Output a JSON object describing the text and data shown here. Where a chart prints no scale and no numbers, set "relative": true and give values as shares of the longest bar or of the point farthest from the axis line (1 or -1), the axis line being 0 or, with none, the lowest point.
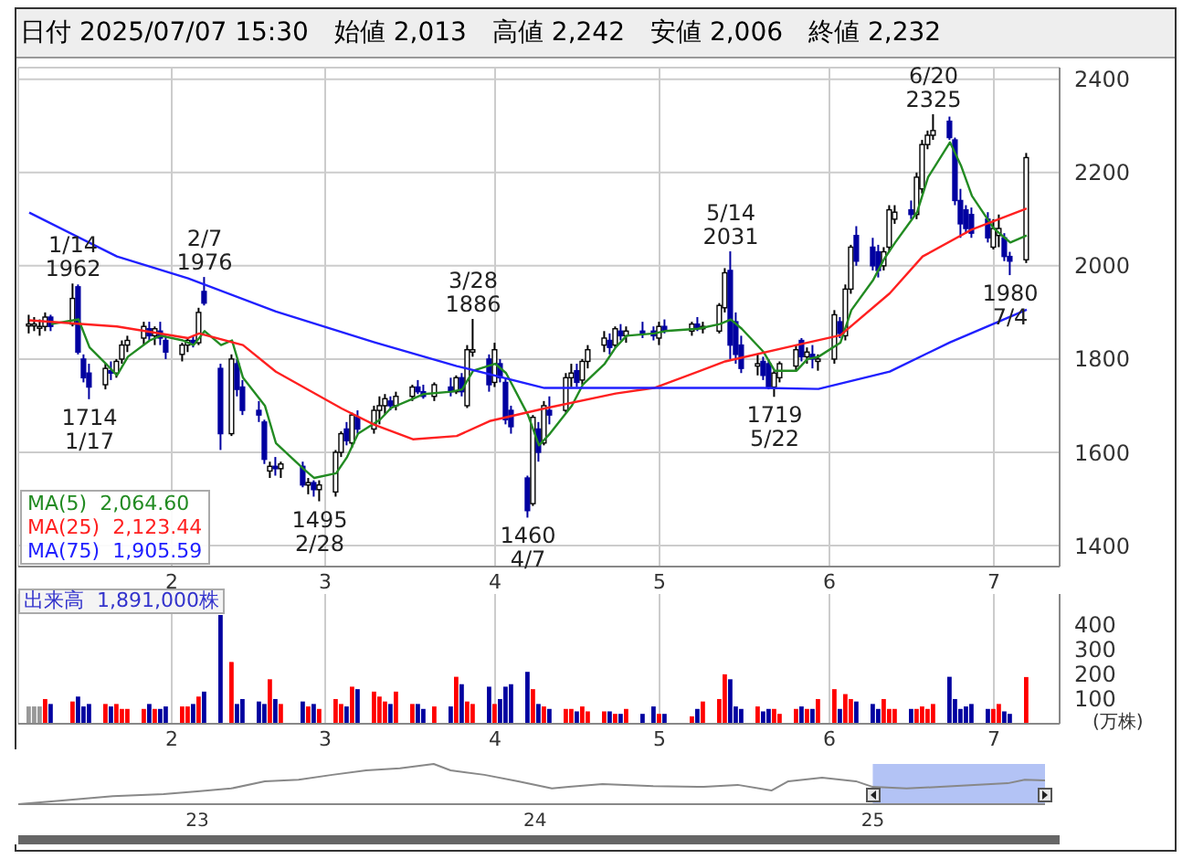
{
  "chart_data": [
    {
      "type": "candlestick",
      "title": "日付 2025/07/07 15:30",
      "colors": [
        "#ffffff",
        "#ffffff",
        "#ffffff",
        "#ffffff",
        "#0000a0",
        "#ffffff",
        "#0000a0",
        "#0000a0",
        "#0000a0",
        "#ffffff",
        "#0000a0",
        "#ffffff",
        "#ffffff",
        "#ffffff",
        "#ffffff",
        "#0000a0",
        "#ffffff",
        "#0000a0",
        "#0000a0",
        "#ffffff",
        "#ffffff",
        "#0000a0",
        "#ffffff",
        "#0000a0",
        "#0000a0",
        "#ffffff",
        "#0000a0",
        "#0000a0",
        "#0000a0",
        "#0000a0",
        "#ffffff",
        "#0000a0",
        "#ffffff",
        "#0000a0",
        "#ffffff",
        "#0000a0",
        "#ffffff",
        "#ffffff",
        "#ffffff",
        "#0000a0",
        "#ffffff",
        "#0000a0",
        "#ffffff",
        "#ffffff",
        "#ffffff",
        "#0000a0",
        "#ffffff",
        "#ffffff",
        "#0000a0",
        "#0000a0",
        "#ffffff",
        "#0000a0",
        "#ffffff",
        "#0000a0",
        "#ffffff",
        "#ffffff",
        "#0000a0",
        "#ffffff",
        "#0000a0",
        "#0000a0",
        "#0000a0",
        "#0000a0",
        "#ffffff",
        "#0000a0",
        "#ffffff",
        "#0000a0",
        "#ffffff",
        "#ffffff",
        "#0000a0",
        "#ffffff",
        "#ffffff",
        "#ffffff",
        "#0000a0",
        "#ffffff",
        "#0000a0",
        "#ffffff",
        "#0000a0",
        "#0000a0",
        "#ffffff",
        "#0000a0",
        "#ffffff",
        "#0000a0",
        "#ffffff",
        "#ffffff",
        "#ffffff",
        "#0000a0",
        "#0000a0",
        "#0000a0",
        "#ffffff",
        "#0000a0",
        "#0000a0",
        "#ffffff",
        "#ffffff",
        "#ffffff",
        "#0000a0",
        "#ffffff",
        "#0000a0",
        "#ffffff",
        "#ffffff",
        "#0000a0",
        "#ffffff",
        "#ffffff",
        "#0000a0",
        "#0000a0",
        "#0000a0",
        "#ffffff",
        "#ffffff",
        "#ffffff",
        "#0000a0",
        "#ffffff",
        "#ffffff",
        "#ffffff",
        "#ffffff",
        "#0000a0",
        "#0000a0",
        "#0000a0",
        "#0000a0",
        "#0000a0",
        "#0000a0",
        "#ffffff",
        "#ffffff",
        "#0000a0",
        "#0000a0",
        "#ffffff"
      ],
      "annotations": [
        "始値 2,013",
        "高値 2,242",
        "安値 2,006",
        "終値 2,232",
        {
          "text": "1/14\n1962",
          "x": "2025-01-14",
          "y": 1962
        },
        {
          "text": "1714\n1/17",
          "x": "2025-01-17",
          "y": 1714
        },
        {
          "text": "2/7\n1976",
          "x": "2025-02-07",
          "y": 1976
        },
        {
          "text": "1495\n2/28",
          "x": "2025-02-28",
          "y": 1495
        },
        {
          "text": "3/28\n1886",
          "x": "2025-03-28",
          "y": 1886
        },
        {
          "text": "1460\n4/7",
          "x": "2025-04-07",
          "y": 1460
        },
        {
          "text": "5/14\n2031",
          "x": "2025-05-14",
          "y": 2031
        },
        {
          "text": "1719\n5/22",
          "x": "2025-05-22",
          "y": 1719
        },
        {
          "text": "6/20\n2325",
          "x": "2025-06-20",
          "y": 2325
        },
        {
          "text": "1980\n7/4",
          "x": "2025-07-04",
          "y": 1980
        }
      ],
      "x": [
        "2025-01-06",
        "2025-01-07",
        "2025-01-08",
        "2025-01-09",
        "2025-01-10",
        "2025-01-14",
        "2025-01-15",
        "2025-01-16",
        "2025-01-17",
        "2025-01-20",
        "2025-01-21",
        "2025-01-22",
        "2025-01-23",
        "2025-01-24",
        "2025-01-27",
        "2025-01-28",
        "2025-01-29",
        "2025-01-30",
        "2025-01-31",
        "2025-02-03",
        "2025-02-04",
        "2025-02-05",
        "2025-02-06",
        "2025-02-07",
        "2025-02-10",
        "2025-02-12",
        "2025-02-13",
        "2025-02-14",
        "2025-02-17",
        "2025-02-18",
        "2025-02-19",
        "2025-02-20",
        "2025-02-21",
        "2025-02-25",
        "2025-02-26",
        "2025-02-27",
        "2025-02-28",
        "2025-03-03",
        "2025-03-04",
        "2025-03-05",
        "2025-03-06",
        "2025-03-07",
        "2025-03-10",
        "2025-03-11",
        "2025-03-12",
        "2025-03-13",
        "2025-03-14",
        "2025-03-17",
        "2025-03-18",
        "2025-03-19",
        "2025-03-21",
        "2025-03-24",
        "2025-03-25",
        "2025-03-26",
        "2025-03-27",
        "2025-03-28",
        "2025-03-31",
        "2025-04-01",
        "2025-04-02",
        "2025-04-03",
        "2025-04-04",
        "2025-04-07",
        "2025-04-08",
        "2025-04-09",
        "2025-04-10",
        "2025-04-11",
        "2025-04-14",
        "2025-04-15",
        "2025-04-16",
        "2025-04-17",
        "2025-04-18",
        "2025-04-21",
        "2025-04-22",
        "2025-04-23",
        "2025-04-24",
        "2025-04-25",
        "2025-04-28",
        "2025-04-30",
        "2025-05-01",
        "2025-05-02",
        "2025-05-07",
        "2025-05-08",
        "2025-05-09",
        "2025-05-12",
        "2025-05-13",
        "2025-05-14",
        "2025-05-15",
        "2025-05-16",
        "2025-05-19",
        "2025-05-20",
        "2025-05-21",
        "2025-05-22",
        "2025-05-23",
        "2025-05-26",
        "2025-05-27",
        "2025-05-28",
        "2025-05-29",
        "2025-05-30",
        "2025-06-02",
        "2025-06-03",
        "2025-06-04",
        "2025-06-05",
        "2025-06-06",
        "2025-06-09",
        "2025-06-10",
        "2025-06-11",
        "2025-06-12",
        "2025-06-13",
        "2025-06-16",
        "2025-06-17",
        "2025-06-18",
        "2025-06-19",
        "2025-06-20",
        "2025-06-23",
        "2025-06-24",
        "2025-06-25",
        "2025-06-26",
        "2025-06-27",
        "2025-06-30",
        "2025-07-01",
        "2025-07-02",
        "2025-07-03",
        "2025-07-04",
        "2025-07-07"
      ],
      "ohlc": [
        [
          1875,
          1895,
          1855,
          1875
        ],
        [
          1875,
          1890,
          1860,
          1875
        ],
        [
          1870,
          1885,
          1850,
          1870
        ],
        [
          1870,
          1900,
          1860,
          1890
        ],
        [
          1890,
          1895,
          1860,
          1870
        ],
        [
          1875,
          1962,
          1870,
          1930
        ],
        [
          1955,
          1960,
          1810,
          1815
        ],
        [
          1800,
          1810,
          1750,
          1760
        ],
        [
          1770,
          1790,
          1714,
          1740
        ],
        [
          1745,
          1790,
          1735,
          1780
        ],
        [
          1775,
          1795,
          1755,
          1770
        ],
        [
          1770,
          1800,
          1760,
          1795
        ],
        [
          1800,
          1840,
          1790,
          1830
        ],
        [
          1830,
          1850,
          1815,
          1840
        ],
        [
          1845,
          1880,
          1830,
          1870
        ],
        [
          1865,
          1880,
          1840,
          1850
        ],
        [
          1850,
          1870,
          1830,
          1865
        ],
        [
          1860,
          1880,
          1830,
          1845
        ],
        [
          1840,
          1850,
          1800,
          1815
        ],
        [
          1810,
          1835,
          1795,
          1830
        ],
        [
          1830,
          1845,
          1815,
          1840
        ],
        [
          1840,
          1850,
          1825,
          1835
        ],
        [
          1835,
          1910,
          1830,
          1900
        ],
        [
          1945,
          1976,
          1915,
          1920
        ],
        [
          1780,
          1790,
          1605,
          1640
        ],
        [
          1640,
          1810,
          1635,
          1800
        ],
        [
          1790,
          1800,
          1720,
          1735
        ],
        [
          1740,
          1755,
          1680,
          1690
        ],
        [
          1690,
          1710,
          1665,
          1680
        ],
        [
          1665,
          1670,
          1575,
          1585
        ],
        [
          1560,
          1580,
          1545,
          1570
        ],
        [
          1570,
          1590,
          1550,
          1565
        ],
        [
          1565,
          1580,
          1545,
          1575
        ],
        [
          1570,
          1580,
          1525,
          1530
        ],
        [
          1530,
          1545,
          1510,
          1535
        ],
        [
          1535,
          1540,
          1505,
          1520
        ],
        [
          1520,
          1540,
          1495,
          1530
        ],
        [
          1515,
          1605,
          1505,
          1600
        ],
        [
          1600,
          1645,
          1590,
          1640
        ],
        [
          1650,
          1665,
          1615,
          1625
        ],
        [
          1620,
          1685,
          1610,
          1680
        ],
        [
          1675,
          1690,
          1640,
          1650
        ],
        [
          1650,
          1700,
          1640,
          1690
        ],
        [
          1690,
          1720,
          1660,
          1700
        ],
        [
          1700,
          1725,
          1680,
          1715
        ],
        [
          1710,
          1720,
          1690,
          1700
        ],
        [
          1700,
          1730,
          1690,
          1720
        ],
        [
          1720,
          1745,
          1710,
          1740
        ],
        [
          1740,
          1755,
          1725,
          1730
        ],
        [
          1730,
          1745,
          1715,
          1720
        ],
        [
          1720,
          1750,
          1710,
          1745
        ],
        [
          1740,
          1760,
          1720,
          1730
        ],
        [
          1730,
          1765,
          1725,
          1760
        ],
        [
          1760,
          1770,
          1720,
          1730
        ],
        [
          1700,
          1830,
          1695,
          1820
        ],
        [
          1815,
          1886,
          1805,
          1820
        ],
        [
          1800,
          1810,
          1730,
          1745
        ],
        [
          1750,
          1835,
          1740,
          1820
        ],
        [
          1790,
          1800,
          1750,
          1760
        ],
        [
          1750,
          1760,
          1660,
          1670
        ],
        [
          1690,
          1700,
          1640,
          1655
        ],
        [
          1545,
          1550,
          1460,
          1475
        ],
        [
          1490,
          1680,
          1485,
          1675
        ],
        [
          1650,
          1665,
          1580,
          1600
        ],
        [
          1620,
          1710,
          1615,
          1700
        ],
        [
          1690,
          1720,
          1660,
          1680
        ],
        [
          1690,
          1770,
          1685,
          1760
        ],
        [
          1760,
          1790,
          1740,
          1770
        ],
        [
          1775,
          1790,
          1740,
          1750
        ],
        [
          1755,
          1800,
          1745,
          1795
        ],
        [
          1795,
          1830,
          1780,
          1820
        ],
        [
          1830,
          1860,
          1815,
          1845
        ],
        [
          1840,
          1855,
          1810,
          1825
        ],
        [
          1830,
          1870,
          1825,
          1865
        ],
        [
          1860,
          1875,
          1840,
          1850
        ],
        [
          1850,
          1870,
          1835,
          1860
        ],
        [
          1860,
          1880,
          1845,
          1855
        ],
        [
          1860,
          1870,
          1840,
          1850
        ],
        [
          1845,
          1880,
          1830,
          1870
        ],
        [
          1870,
          1885,
          1855,
          1860
        ],
        [
          1860,
          1880,
          1850,
          1875
        ],
        [
          1875,
          1890,
          1860,
          1865
        ],
        [
          1865,
          1880,
          1855,
          1870
        ],
        [
          1860,
          1920,
          1855,
          1915
        ],
        [
          1910,
          1995,
          1900,
          1985
        ],
        [
          1990,
          2031,
          1800,
          1830
        ],
        [
          1880,
          1900,
          1790,
          1810
        ],
        [
          1830,
          1850,
          1770,
          1780
        ],
        [
          1785,
          1810,
          1765,
          1790
        ],
        [
          1795,
          1805,
          1755,
          1765
        ],
        [
          1790,
          1800,
          1735,
          1740
        ],
        [
          1740,
          1775,
          1719,
          1770
        ],
        [
          1760,
          1795,
          1750,
          1790
        ],
        [
          1785,
          1830,
          1775,
          1820
        ],
        [
          1840,
          1845,
          1795,
          1805
        ],
        [
          1805,
          1825,
          1790,
          1815
        ],
        [
          1810,
          1830,
          1780,
          1800
        ],
        [
          1795,
          1810,
          1775,
          1800
        ],
        [
          1800,
          1905,
          1790,
          1895
        ],
        [
          1880,
          1890,
          1845,
          1855
        ],
        [
          1850,
          1960,
          1840,
          1950
        ],
        [
          1950,
          2045,
          1940,
          2040
        ],
        [
          2065,
          2085,
          2000,
          2010
        ],
        [
          2040,
          2060,
          1990,
          2000
        ],
        [
          2030,
          2045,
          1975,
          1990
        ],
        [
          2000,
          2040,
          1990,
          2030
        ],
        [
          2040,
          2130,
          2030,
          2120
        ],
        [
          2100,
          2130,
          2090,
          2115
        ],
        [
          2120,
          2140,
          2100,
          2110
        ],
        [
          2110,
          2200,
          2100,
          2190
        ],
        [
          2165,
          2270,
          2155,
          2260
        ],
        [
          2260,
          2290,
          2250,
          2280
        ],
        [
          2280,
          2325,
          2270,
          2290
        ],
        [
          2310,
          2320,
          2270,
          2275
        ],
        [
          2270,
          2275,
          2130,
          2140
        ],
        [
          2140,
          2165,
          2060,
          2090
        ],
        [
          2120,
          2130,
          2070,
          2080
        ],
        [
          2110,
          2125,
          2060,
          2070
        ],
        [
          2100,
          2115,
          2050,
          2060
        ],
        [
          2040,
          2100,
          2035,
          2080
        ],
        [
          2065,
          2110,
          2040,
          2080
        ],
        [
          2060,
          2070,
          2010,
          2020
        ],
        [
          2020,
          2030,
          1980,
          2010
        ],
        [
          2013,
          2242,
          2006,
          2232
        ]
      ],
      "series": [
        {
          "type": "line",
          "name": "MA(5)  2,064.60",
          "color": "#228b22",
          "x": [
            "2025-01-10",
            "2025-01-15",
            "2025-01-17",
            "2025-01-20",
            "2025-01-22",
            "2025-01-24",
            "2025-01-28",
            "2025-01-30",
            "2025-02-03",
            "2025-02-05",
            "2025-02-07",
            "2025-02-10",
            "2025-02-12",
            "2025-02-14",
            "2025-02-18",
            "2025-02-20",
            "2025-02-25",
            "2025-02-27",
            "2025-03-03",
            "2025-03-05",
            "2025-03-07",
            "2025-03-11",
            "2025-03-13",
            "2025-03-17",
            "2025-03-19",
            "2025-03-24",
            "2025-03-26",
            "2025-03-28",
            "2025-04-01",
            "2025-04-03",
            "2025-04-07",
            "2025-04-09",
            "2025-04-11",
            "2025-04-15",
            "2025-04-17",
            "2025-04-21",
            "2025-04-23",
            "2025-04-25",
            "2025-04-30",
            "2025-05-02",
            "2025-05-08",
            "2025-05-12",
            "2025-05-14",
            "2025-05-16",
            "2025-05-20",
            "2025-05-22",
            "2025-05-26",
            "2025-05-28",
            "2025-05-30",
            "2025-06-03",
            "2025-06-05",
            "2025-06-09",
            "2025-06-11",
            "2025-06-13",
            "2025-06-17",
            "2025-06-19",
            "2025-06-23",
            "2025-06-25",
            "2025-06-27",
            "2025-07-01",
            "2025-07-03",
            "2025-07-04",
            "2025-07-07"
          ],
          "values": [
            1875,
            1885,
            1825,
            1790,
            1765,
            1805,
            1840,
            1850,
            1840,
            1830,
            1860,
            1830,
            1840,
            1760,
            1700,
            1620,
            1565,
            1545,
            1555,
            1590,
            1640,
            1670,
            1695,
            1715,
            1725,
            1730,
            1735,
            1775,
            1790,
            1770,
            1680,
            1615,
            1640,
            1700,
            1745,
            1790,
            1825,
            1850,
            1855,
            1860,
            1865,
            1875,
            1885,
            1865,
            1815,
            1775,
            1775,
            1800,
            1805,
            1835,
            1905,
            1970,
            2015,
            2050,
            2115,
            2190,
            2265,
            2215,
            2150,
            2080,
            2060,
            2050,
            2065
          ]
        },
        {
          "type": "line",
          "name": "MA(25)  2,123.44",
          "color": "#ff2020",
          "x": [
            "2025-01-06",
            "2025-01-22",
            "2025-02-04",
            "2025-02-06",
            "2025-02-14",
            "2025-02-20",
            "2025-03-04",
            "2025-03-10",
            "2025-03-17",
            "2025-03-25",
            "2025-03-31",
            "2025-04-10",
            "2025-04-23",
            "2025-04-30",
            "2025-05-13",
            "2025-05-26",
            "2025-06-03",
            "2025-06-12",
            "2025-06-18",
            "2025-06-27",
            "2025-07-07"
          ],
          "values": [
            1883,
            1870,
            1845,
            1855,
            1830,
            1773,
            1694,
            1659,
            1628,
            1635,
            1667,
            1694,
            1726,
            1738,
            1795,
            1830,
            1851,
            1941,
            2020,
            2078,
            2123
          ]
        },
        {
          "type": "line",
          "name": "MA(75)  1,905.59",
          "color": "#2020ff",
          "x": [
            "2025-01-06",
            "2025-01-22",
            "2025-02-04",
            "2025-02-20",
            "2025-03-10",
            "2025-03-25",
            "2025-04-10",
            "2025-04-30",
            "2025-05-20",
            "2025-05-30",
            "2025-06-12",
            "2025-06-23",
            "2025-07-07"
          ],
          "values": [
            2114,
            2020,
            1973,
            1902,
            1836,
            1785,
            1738,
            1738,
            1738,
            1736,
            1773,
            1836,
            1906
          ]
        }
      ],
      "ylim": [
        1355,
        2425
      ],
      "yticks": [
        1400,
        1600,
        1800,
        2000,
        2200,
        2400
      ],
      "xlim": [
        "2025-01-04",
        "2025-07-13"
      ],
      "xticks": [
        {
          "value": "2025-02-01",
          "label": "2"
        },
        {
          "value": "2025-03-01",
          "label": "3"
        },
        {
          "value": "2025-04-01",
          "label": "4"
        },
        {
          "value": "2025-05-01",
          "label": "5"
        },
        {
          "value": "2025-06-01",
          "label": "6"
        },
        {
          "value": "2025-07-01",
          "label": "7"
        }
      ],
      "grid": true,
      "legend": "bottom left",
      "marker": "none"
    },
    {
      "type": "bar",
      "title": "出来高  1,891,000株",
      "ylabel": "(万株)",
      "x": [
        "2025-01-06",
        "2025-01-07",
        "2025-01-08",
        "2025-01-09",
        "2025-01-10",
        "2025-01-14",
        "2025-01-15",
        "2025-01-16",
        "2025-01-17",
        "2025-01-20",
        "2025-01-21",
        "2025-01-22",
        "2025-01-23",
        "2025-01-24",
        "2025-01-27",
        "2025-01-28",
        "2025-01-29",
        "2025-01-30",
        "2025-01-31",
        "2025-02-03",
        "2025-02-04",
        "2025-02-05",
        "2025-02-06",
        "2025-02-07",
        "2025-02-10",
        "2025-02-12",
        "2025-02-13",
        "2025-02-14",
        "2025-02-17",
        "2025-02-18",
        "2025-02-19",
        "2025-02-20",
        "2025-02-21",
        "2025-02-25",
        "2025-02-26",
        "2025-02-27",
        "2025-02-28",
        "2025-03-03",
        "2025-03-04",
        "2025-03-05",
        "2025-03-06",
        "2025-03-07",
        "2025-03-10",
        "2025-03-11",
        "2025-03-12",
        "2025-03-13",
        "2025-03-14",
        "2025-03-17",
        "2025-03-18",
        "2025-03-19",
        "2025-03-21",
        "2025-03-24",
        "2025-03-25",
        "2025-03-26",
        "2025-03-27",
        "2025-03-28",
        "2025-03-31",
        "2025-04-01",
        "2025-04-02",
        "2025-04-03",
        "2025-04-04",
        "2025-04-07",
        "2025-04-08",
        "2025-04-09",
        "2025-04-10",
        "2025-04-11",
        "2025-04-14",
        "2025-04-15",
        "2025-04-16",
        "2025-04-17",
        "2025-04-18",
        "2025-04-21",
        "2025-04-22",
        "2025-04-23",
        "2025-04-24",
        "2025-04-25",
        "2025-04-28",
        "2025-04-30",
        "2025-05-01",
        "2025-05-02",
        "2025-05-07",
        "2025-05-08",
        "2025-05-09",
        "2025-05-12",
        "2025-05-13",
        "2025-05-14",
        "2025-05-15",
        "2025-05-16",
        "2025-05-19",
        "2025-05-20",
        "2025-05-21",
        "2025-05-22",
        "2025-05-23",
        "2025-05-26",
        "2025-05-27",
        "2025-05-28",
        "2025-05-29",
        "2025-05-30",
        "2025-06-02",
        "2025-06-03",
        "2025-06-04",
        "2025-06-05",
        "2025-06-06",
        "2025-06-09",
        "2025-06-10",
        "2025-06-11",
        "2025-06-12",
        "2025-06-13",
        "2025-06-16",
        "2025-06-17",
        "2025-06-18",
        "2025-06-19",
        "2025-06-20",
        "2025-06-23",
        "2025-06-24",
        "2025-06-25",
        "2025-06-26",
        "2025-06-27",
        "2025-06-30",
        "2025-07-01",
        "2025-07-02",
        "2025-07-03",
        "2025-07-04",
        "2025-07-07"
      ],
      "values": [
        70,
        70,
        70,
        100,
        80,
        90,
        110,
        70,
        80,
        80,
        70,
        80,
        60,
        60,
        60,
        80,
        60,
        60,
        70,
        70,
        70,
        80,
        110,
        130,
        440,
        250,
        80,
        100,
        90,
        80,
        180,
        100,
        80,
        90,
        70,
        80,
        60,
        100,
        80,
        70,
        150,
        140,
        130,
        110,
        90,
        80,
        130,
        80,
        80,
        60,
        70,
        70,
        190,
        160,
        90,
        80,
        150,
        80,
        100,
        150,
        160,
        210,
        140,
        80,
        70,
        60,
        60,
        60,
        50,
        70,
        50,
        50,
        50,
        40,
        40,
        60,
        40,
        70,
        40,
        40,
        30,
        60,
        90,
        100,
        200,
        180,
        70,
        60,
        70,
        50,
        60,
        60,
        40,
        60,
        70,
        60,
        60,
        100,
        140,
        60,
        120,
        100,
        90,
        80,
        60,
        100,
        60,
        60,
        60,
        60,
        70,
        60,
        80,
        190,
        100,
        60,
        70,
        80,
        60,
        60,
        80,
        50,
        40,
        189
      ],
      "colors": [
        "#999999",
        "#999999",
        "#999999",
        "#ff0000",
        "#0000a0",
        "#ff0000",
        "#0000a0",
        "#0000a0",
        "#0000a0",
        "#ff0000",
        "#0000a0",
        "#ff0000",
        "#ff0000",
        "#ff0000",
        "#ff0000",
        "#0000a0",
        "#ff0000",
        "#0000a0",
        "#0000a0",
        "#ff0000",
        "#ff0000",
        "#0000a0",
        "#ff0000",
        "#0000a0",
        "#0000a0",
        "#ff0000",
        "#0000a0",
        "#0000a0",
        "#0000a0",
        "#0000a0",
        "#ff0000",
        "#0000a0",
        "#ff0000",
        "#0000a0",
        "#ff0000",
        "#0000a0",
        "#ff0000",
        "#ff0000",
        "#ff0000",
        "#0000a0",
        "#ff0000",
        "#0000a0",
        "#ff0000",
        "#ff0000",
        "#ff0000",
        "#0000a0",
        "#ff0000",
        "#ff0000",
        "#0000a0",
        "#0000a0",
        "#ff0000",
        "#0000a0",
        "#ff0000",
        "#0000a0",
        "#ff0000",
        "#ff0000",
        "#0000a0",
        "#ff0000",
        "#0000a0",
        "#0000a0",
        "#0000a0",
        "#0000a0",
        "#ff0000",
        "#0000a0",
        "#ff0000",
        "#0000a0",
        "#ff0000",
        "#ff0000",
        "#0000a0",
        "#ff0000",
        "#ff0000",
        "#ff0000",
        "#0000a0",
        "#ff0000",
        "#0000a0",
        "#ff0000",
        "#0000a0",
        "#0000a0",
        "#ff0000",
        "#0000a0",
        "#ff0000",
        "#0000a0",
        "#ff0000",
        "#ff0000",
        "#ff0000",
        "#0000a0",
        "#0000a0",
        "#0000a0",
        "#ff0000",
        "#0000a0",
        "#0000a0",
        "#ff0000",
        "#ff0000",
        "#ff0000",
        "#0000a0",
        "#ff0000",
        "#0000a0",
        "#ff0000",
        "#ff0000",
        "#0000a0",
        "#ff0000",
        "#ff0000",
        "#0000a0",
        "#0000a0",
        "#0000a0",
        "#ff0000",
        "#ff0000",
        "#ff0000",
        "#0000a0",
        "#ff0000",
        "#ff0000",
        "#ff0000",
        "#ff0000",
        "#0000a0",
        "#0000a0",
        "#0000a0",
        "#0000a0",
        "#0000a0",
        "#0000a0",
        "#ff0000",
        "#ff0000",
        "#0000a0",
        "#0000a0",
        "#ff0000"
      ],
      "ylim": [
        0,
        525
      ],
      "yticks": [
        100,
        200,
        300,
        400
      ],
      "xlim": [
        "2025-01-04",
        "2025-07-13"
      ],
      "xticks": [
        {
          "value": "2025-02-01",
          "label": "2"
        },
        {
          "value": "2025-03-01",
          "label": "3"
        },
        {
          "value": "2025-04-01",
          "label": "4"
        },
        {
          "value": "2025-05-01",
          "label": "5"
        },
        {
          "value": "2025-06-01",
          "label": "6"
        },
        {
          "value": "2025-07-01",
          "label": "7"
        }
      ],
      "grid": "x"
    },
    {
      "type": "line",
      "relative": true,
      "color": "#888888",
      "tick_labels": "x",
      "x": [
        2022.47,
        2022.6,
        2022.75,
        2022.9,
        2023.0,
        2023.1,
        2023.2,
        2023.3,
        2023.4,
        2023.5,
        2023.6,
        2023.7,
        2023.75,
        2023.85,
        2023.95,
        2024.05,
        2024.1,
        2024.2,
        2024.35,
        2024.5,
        2024.6,
        2024.7,
        2024.75,
        2024.85,
        2024.95,
        2025.0,
        2025.1,
        2025.2,
        2025.3,
        2025.4,
        2025.45,
        2025.51
      ],
      "values": [
        0,
        0.09,
        0.2,
        0.25,
        0.32,
        0.39,
        0.57,
        0.61,
        0.73,
        0.84,
        0.89,
        1,
        0.84,
        0.73,
        0.57,
        0.39,
        0.43,
        0.5,
        0.45,
        0.43,
        0.48,
        0.34,
        0.57,
        0.66,
        0.57,
        0.43,
        0.39,
        0.43,
        0.48,
        0.52,
        0.61,
        0.59
      ],
      "xlim": [
        2022.47,
        2025.51
      ],
      "xticks": [
        {
          "value": 2023,
          "label": "23"
        },
        {
          "value": 2024,
          "label": "24"
        },
        {
          "value": 2025,
          "label": "25"
        }
      ],
      "bands": [
        {
          "axis": "x",
          "from": 2025.0,
          "to": 2025.51,
          "color": "#b3c3f5"
        }
      ]
    }
  ]
}
